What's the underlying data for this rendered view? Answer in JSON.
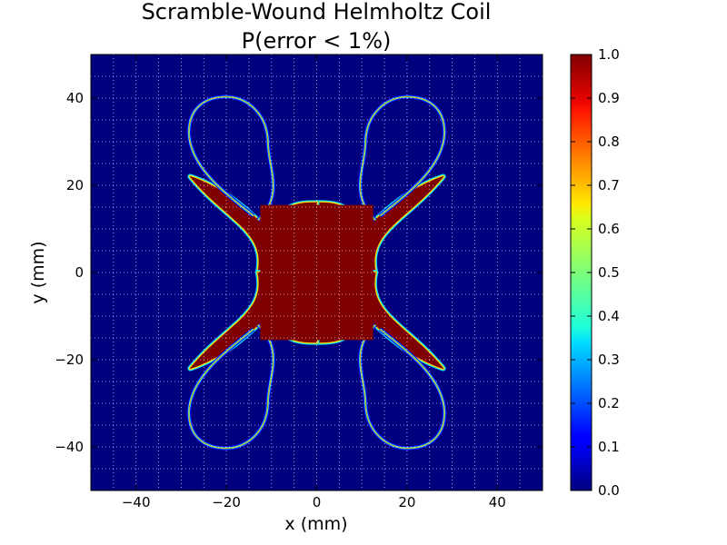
{
  "chart_data": {
    "type": "heatmap",
    "title": "Scramble-Wound Helmholtz Coil",
    "subtitle": "P(error < 1%)",
    "xlabel": "x (mm)",
    "ylabel": "y (mm)",
    "xlim": [
      -50,
      50
    ],
    "ylim": [
      -50,
      50
    ],
    "xticks": [
      -40,
      -20,
      0,
      20,
      40
    ],
    "yticks": [
      -40,
      -20,
      0,
      20,
      40
    ],
    "xtick_labels": [
      "−40",
      "−20",
      "0",
      "20",
      "40"
    ],
    "ytick_labels": [
      "−40",
      "−20",
      "0",
      "20",
      "40"
    ],
    "grid": true,
    "colormap": "jet",
    "colorbar": {
      "range": [
        0.0,
        1.0
      ],
      "ticks": [
        0.0,
        0.1,
        0.2,
        0.3,
        0.4,
        0.5,
        0.6,
        0.7,
        0.8,
        0.9,
        1.0
      ],
      "tick_labels": [
        "0.0",
        "0.1",
        "0.2",
        "0.3",
        "0.4",
        "0.5",
        "0.6",
        "0.7",
        "0.8",
        "0.9",
        "1.0"
      ]
    },
    "region": {
      "shape": "four-lobed X (cross) shape, symmetric about both axes",
      "core_value": 1.0,
      "background_value": 0.0,
      "core_extent_mm": {
        "x_half_width_at_y0": 13,
        "y_half_height_at_x0": 16
      },
      "lobe_centers_mm": [
        [
          -20,
          28
        ],
        [
          20,
          28
        ],
        [
          -20,
          -28
        ],
        [
          20,
          -28
        ]
      ],
      "lobe_outer_extent_mm": {
        "max_abs_x": 29,
        "max_abs_y": 41
      }
    }
  },
  "colors": {
    "background": "#00007f",
    "core": "#7f0000",
    "grid": "#ffffff"
  }
}
